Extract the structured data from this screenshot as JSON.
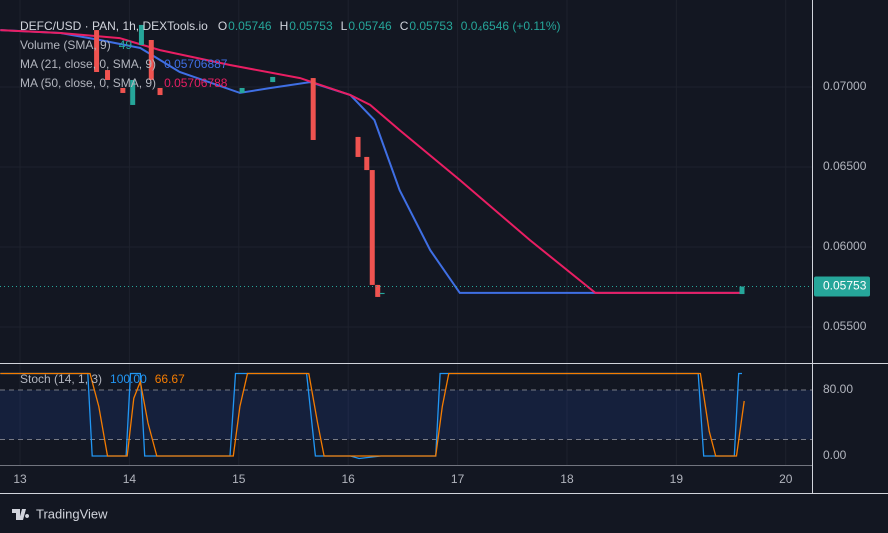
{
  "chart_data": [
    {
      "type": "candlestick",
      "title": "DEFC/USD · PAN, 1h, DEXTools.io",
      "ohlc": [
        {
          "label": "O",
          "value": 0.05746
        },
        {
          "label": "H",
          "value": 0.05753
        },
        {
          "label": "L",
          "value": 0.05746
        },
        {
          "label": "C",
          "value": 0.05753
        }
      ],
      "change": "0.0₄6546 (+0.11%)",
      "volume": {
        "name": "Volume (SMA, 9)",
        "value": 49
      },
      "up_color": "#26a69a",
      "down_color": "#ef5350",
      "candles": {
        "x": [
          13.7,
          13.8,
          13.94,
          14.03,
          14.11,
          14.2,
          14.28,
          15.03,
          15.31,
          15.68,
          16.09,
          16.17,
          16.22,
          16.27,
          16.31,
          19.6
        ],
        "open": [
          0.07356,
          0.07106,
          0.06994,
          0.06888,
          0.07263,
          0.07294,
          0.06994,
          0.06963,
          0.07031,
          0.07056,
          0.06688,
          0.06563,
          0.06481,
          0.05763,
          0.05706,
          0.05706
        ],
        "high": [
          0.07356,
          0.07106,
          0.06994,
          0.07044,
          0.07388,
          0.07294,
          0.06994,
          0.06994,
          0.07063,
          0.07056,
          0.06688,
          0.06563,
          0.06481,
          0.05763,
          0.05713,
          0.05753
        ],
        "low": [
          0.07094,
          0.07044,
          0.06963,
          0.06888,
          0.07263,
          0.07044,
          0.0695,
          0.06963,
          0.07031,
          0.06669,
          0.06563,
          0.06481,
          0.05763,
          0.05688,
          0.05706,
          0.05706
        ],
        "close": [
          0.07094,
          0.07044,
          0.06963,
          0.07044,
          0.07388,
          0.07044,
          0.0695,
          0.06994,
          0.07063,
          0.06669,
          0.06563,
          0.06481,
          0.05763,
          0.05688,
          0.05713,
          0.05753
        ]
      },
      "series": [
        {
          "name": "MA (21, close, 0, SMA, 9)",
          "value": 0.05706887,
          "color": "#3f6fe4",
          "x": [
            12.82,
            13.37,
            13.73,
            14.1,
            14.46,
            15.01,
            15.29,
            15.65,
            16.02,
            16.24,
            16.47,
            16.75,
            17.02,
            19.58
          ],
          "values": [
            0.07356,
            0.07338,
            0.07294,
            0.07244,
            0.07094,
            0.06963,
            0.06994,
            0.07031,
            0.0695,
            0.06794,
            0.06356,
            0.05981,
            0.05713,
            0.05713
          ]
        },
        {
          "name": "MA (50, close, 0, SMA, 9)",
          "value": 0.05706788,
          "color": "#e91e63",
          "x": [
            12.82,
            13.37,
            13.91,
            14.28,
            14.92,
            15.56,
            16.02,
            16.2,
            16.47,
            17.02,
            17.66,
            18.26,
            19.58
          ],
          "values": [
            0.07356,
            0.07338,
            0.07306,
            0.07231,
            0.07138,
            0.07056,
            0.0695,
            0.06888,
            0.06731,
            0.06419,
            0.06044,
            0.05713,
            0.05713
          ]
        }
      ],
      "last_price": {
        "value": 0.05753,
        "label": "0.05753"
      },
      "xlim": [
        12.817,
        20.24
      ],
      "ylim": [
        0.05275,
        0.07544
      ],
      "yticks": [
        {
          "value": 0.055,
          "label": "0.05500"
        },
        {
          "value": 0.06,
          "label": "0.06000"
        },
        {
          "value": 0.065,
          "label": "0.06500"
        },
        {
          "value": 0.07,
          "label": "0.07000"
        }
      ],
      "grid": true
    },
    {
      "type": "line",
      "title": "Stoch (14, 1, 3)",
      "series": [
        {
          "name": "%K",
          "value": 100,
          "value_label": "100.00",
          "color": "#2196f3",
          "x": [
            12.82,
            13.62,
            13.66,
            13.97,
            14.01,
            14.1,
            14.14,
            14.92,
            14.97,
            15.62,
            15.7,
            16.02,
            16.1,
            16.3,
            16.8,
            16.84,
            19.2,
            19.25,
            19.53,
            19.57,
            19.6
          ],
          "values": [
            100,
            100,
            0,
            0,
            100,
            100,
            0,
            0,
            100,
            100,
            0,
            0,
            -3,
            0,
            0,
            100,
            100,
            0,
            0,
            100,
            100
          ]
        },
        {
          "name": "%D",
          "value": 66.67,
          "color": "#f57c00",
          "x": [
            12.82,
            13.64,
            13.72,
            13.8,
            13.98,
            14.04,
            14.1,
            14.17,
            14.25,
            14.95,
            15.01,
            15.08,
            15.64,
            15.72,
            15.78,
            16.1,
            16.8,
            16.86,
            16.92,
            19.22,
            19.3,
            19.36,
            19.55,
            19.62
          ],
          "values": [
            100,
            100,
            60,
            0,
            0,
            70,
            90,
            40,
            0,
            0,
            60,
            100,
            100,
            40,
            0,
            0,
            0,
            60,
            100,
            100,
            30,
            0,
            0,
            66.67
          ]
        }
      ],
      "band": [
        20,
        80
      ],
      "xlim": [
        12.817,
        20.24
      ],
      "xticks": [
        13,
        14,
        15,
        16,
        17,
        18,
        19,
        20
      ],
      "ylim": [
        -10.9,
        112.7
      ],
      "yticks": [
        {
          "value": 0,
          "label": "0.00"
        },
        {
          "value": 80,
          "label": "80.00"
        }
      ],
      "grid": true
    }
  ],
  "branding": "TradingView"
}
